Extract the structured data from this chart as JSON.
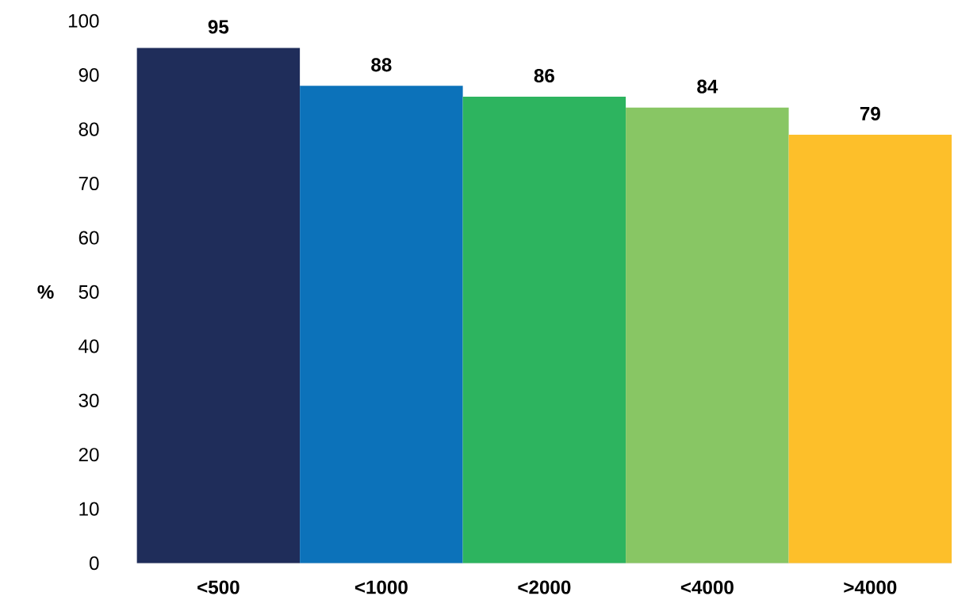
{
  "chart_data": {
    "type": "bar",
    "ylabel": "%",
    "categories": [
      "<500",
      "<1000",
      "<2000",
      "<4000",
      ">4000"
    ],
    "values": [
      95,
      88,
      86,
      84,
      79
    ],
    "colors": [
      "#1f2d5a",
      "#0c72ba",
      "#2db45f",
      "#88c664",
      "#fdbf2a"
    ],
    "ylim": [
      0,
      100
    ],
    "yticks": [
      0,
      10,
      20,
      30,
      40,
      50,
      60,
      70,
      80,
      90,
      100
    ],
    "data_labels": true
  }
}
